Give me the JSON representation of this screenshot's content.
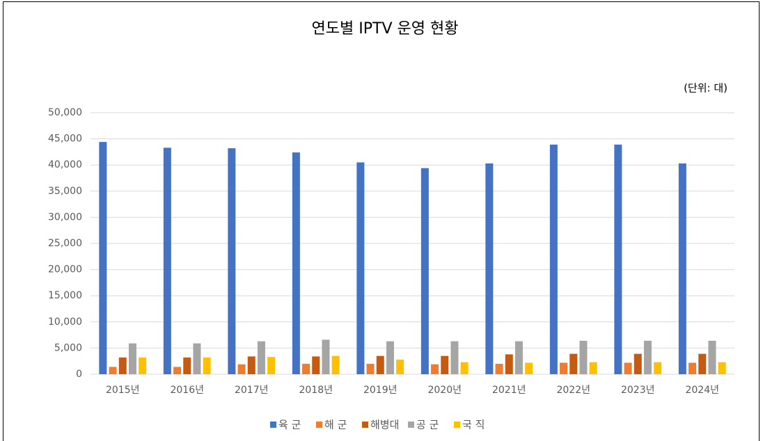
{
  "chart_data": {
    "type": "bar",
    "title": "연도별 IPTV 운영 현황",
    "unit_label": "(단위: 대)",
    "categories": [
      "2015년",
      "2016년",
      "2017년",
      "2018년",
      "2019년",
      "2020년",
      "2021년",
      "2022년",
      "2023년",
      "2024년"
    ],
    "series": [
      {
        "name": "육 군",
        "color": "#4472c4",
        "values": [
          44400,
          43300,
          43200,
          42400,
          40500,
          39400,
          40300,
          43900,
          43900,
          40300
        ]
      },
      {
        "name": "해 군",
        "color": "#ed7d31",
        "values": [
          1400,
          1400,
          1900,
          2000,
          2000,
          1900,
          2000,
          2200,
          2200,
          2200
        ]
      },
      {
        "name": "해병대",
        "color": "#c55a11",
        "values": [
          3200,
          3200,
          3400,
          3400,
          3500,
          3500,
          3800,
          3900,
          3900,
          3900
        ]
      },
      {
        "name": "공 군",
        "color": "#a5a5a5",
        "values": [
          5900,
          5900,
          6300,
          6600,
          6300,
          6300,
          6300,
          6400,
          6400,
          6400
        ]
      },
      {
        "name": "국 직",
        "color": "#ffc000",
        "values": [
          3200,
          3200,
          3300,
          3500,
          2800,
          2300,
          2200,
          2300,
          2300,
          2300
        ]
      }
    ],
    "ylim": [
      0,
      50000
    ],
    "yticks": [
      0,
      {
        "value": 5000,
        "label": "5,000"
      },
      {
        "value": 10000,
        "label": "10,000"
      },
      {
        "value": 15000,
        "label": "15,000"
      },
      {
        "value": 20000,
        "label": "20,000"
      },
      {
        "value": 25000,
        "label": "25,000"
      },
      {
        "value": 30000,
        "label": "30,000"
      },
      {
        "value": 35000,
        "label": "35,000"
      },
      {
        "value": 40000,
        "label": "40,000"
      },
      {
        "value": 45000,
        "label": "45,000"
      },
      {
        "value": 50000,
        "label": "50,000"
      }
    ],
    "grid": true,
    "legend": "bottom"
  }
}
